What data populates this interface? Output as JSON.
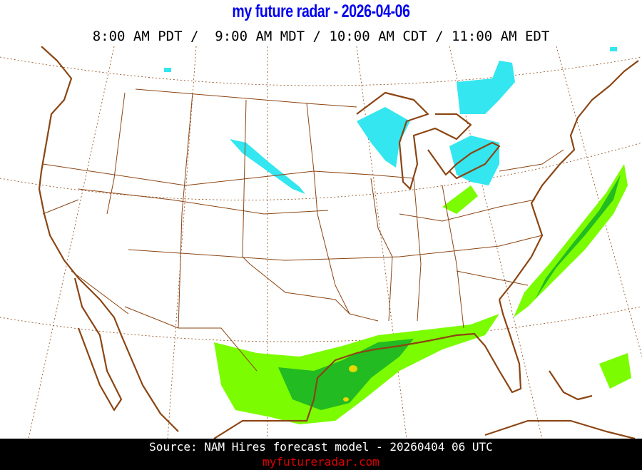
{
  "header": {
    "title": "my future radar - 2026-04-06",
    "time_line": "8:00 AM PDT /  9:00 AM MDT / 10:00 AM CDT / 11:00 AM EDT"
  },
  "map": {
    "region": "Continental United States",
    "layers": [
      "coastlines",
      "state-borders",
      "lat-lon-graticule",
      "forecast-radar"
    ],
    "colors": {
      "borders": "#8b4513",
      "graticule": "#8b4513",
      "snow": "#33e6f0",
      "rain_light": "#7cfc00",
      "rain_moderate": "#22bb22",
      "rain_heavy": "#e6d800"
    }
  },
  "footer": {
    "source": "Source: NAM Hires forecast model - 20260404 06 UTC",
    "website": "myfutureradar.com"
  }
}
